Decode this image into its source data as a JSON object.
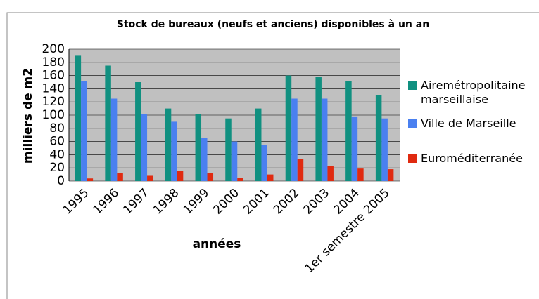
{
  "chart_data": {
    "type": "bar",
    "title": "Stock de bureaux (neufs et anciens) disponibles à un an",
    "y_label": "milliers de m2",
    "x_label": "années",
    "categories": [
      "1995",
      "1996",
      "1997",
      "1998",
      "1999",
      "2000",
      "2001",
      "2002",
      "2003",
      "2004",
      "1er semestre 2005"
    ],
    "series": [
      {
        "name": "Airemétropolitaine marseillaise",
        "color": "#109080",
        "values": [
          190,
          175,
          150,
          110,
          102,
          95,
          110,
          160,
          158,
          152,
          130
        ]
      },
      {
        "name": "Ville de Marseille",
        "color": "#4a80f0",
        "values": [
          152,
          125,
          102,
          90,
          65,
          60,
          55,
          125,
          125,
          98,
          95
        ]
      },
      {
        "name": "Euroméditerranée",
        "color": "#e02a10",
        "values": [
          4,
          12,
          8,
          15,
          12,
          5,
          10,
          34,
          23,
          19,
          18
        ]
      }
    ],
    "ylim": [
      0,
      200
    ],
    "yticks": [
      0,
      20,
      40,
      60,
      80,
      100,
      120,
      140,
      160,
      180,
      200
    ],
    "grid": true,
    "legend": "right"
  }
}
